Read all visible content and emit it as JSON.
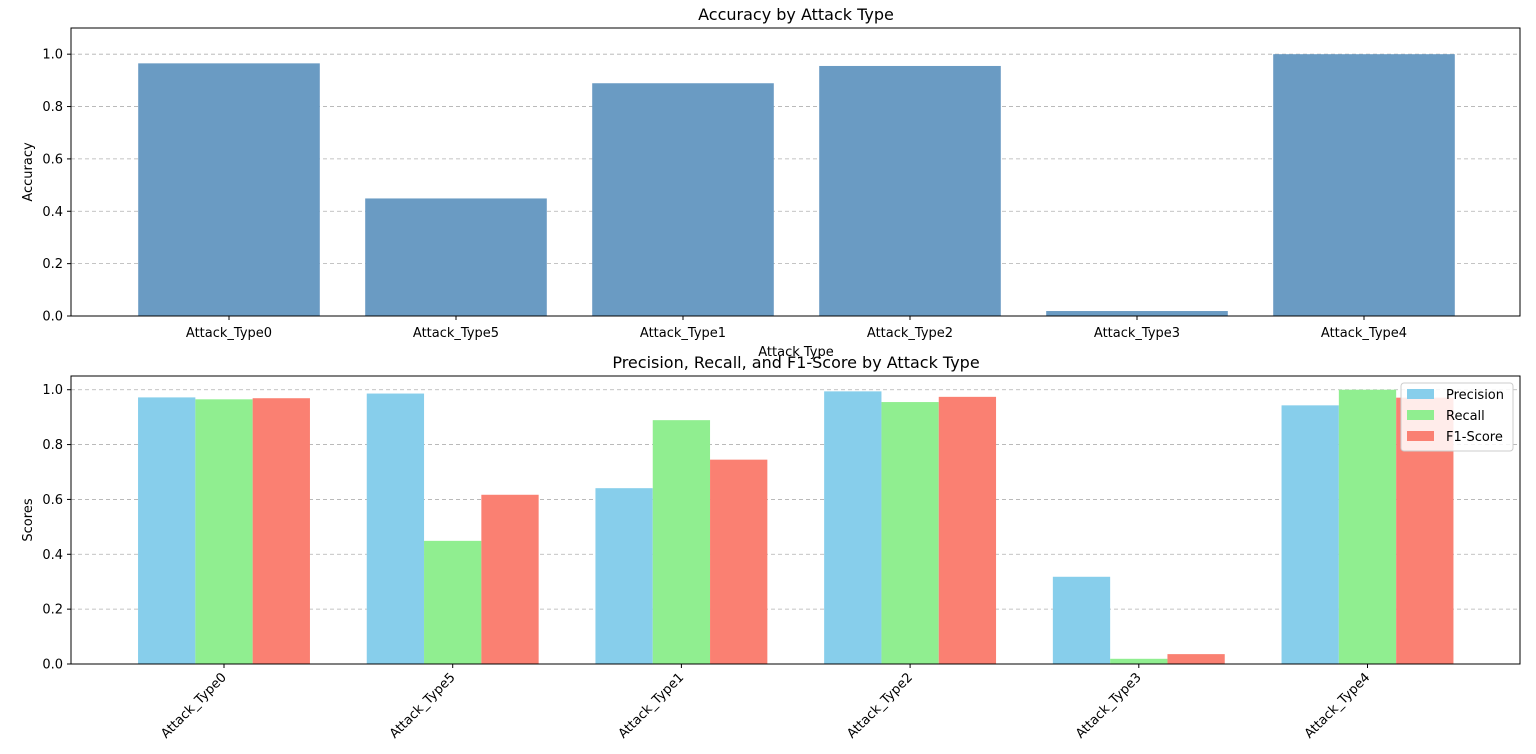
{
  "chart_data": [
    {
      "type": "bar",
      "title": "Accuracy by Attack Type",
      "xlabel": "Attack Type",
      "ylabel": "Accuracy",
      "categories": [
        "Attack_Type0",
        "Attack_Type5",
        "Attack_Type1",
        "Attack_Type2",
        "Attack_Type3",
        "Attack_Type4"
      ],
      "values": [
        0.965,
        0.449,
        0.889,
        0.955,
        0.019,
        1.0
      ],
      "ylim": [
        0,
        1.1
      ],
      "yticks": [
        "0.0",
        "0.2",
        "0.4",
        "0.6",
        "0.8",
        "1.0"
      ],
      "grid": "y-dashed",
      "colors": {
        "bar": "#6a9bc3"
      }
    },
    {
      "type": "bar",
      "title": "Precision, Recall, and F1-Score by Attack Type",
      "xlabel": "",
      "ylabel": "Scores",
      "categories": [
        "Attack_Type0",
        "Attack_Type5",
        "Attack_Type1",
        "Attack_Type2",
        "Attack_Type3",
        "Attack_Type4"
      ],
      "series": [
        {
          "name": "Precision",
          "color": "#87ceeb",
          "values": [
            0.972,
            0.986,
            0.641,
            0.994,
            0.318,
            0.943
          ]
        },
        {
          "name": "Recall",
          "color": "#90ee90",
          "values": [
            0.965,
            0.449,
            0.889,
            0.955,
            0.019,
            1.0
          ]
        },
        {
          "name": "F1-Score",
          "color": "#fa8072",
          "values": [
            0.969,
            0.617,
            0.745,
            0.974,
            0.036,
            0.971
          ]
        }
      ],
      "ylim": [
        0,
        1.05
      ],
      "yticks": [
        "0.0",
        "0.2",
        "0.4",
        "0.6",
        "0.8",
        "1.0"
      ],
      "grid": "y-dashed",
      "legend": "top-right",
      "xtick_rotation": "45"
    }
  ]
}
